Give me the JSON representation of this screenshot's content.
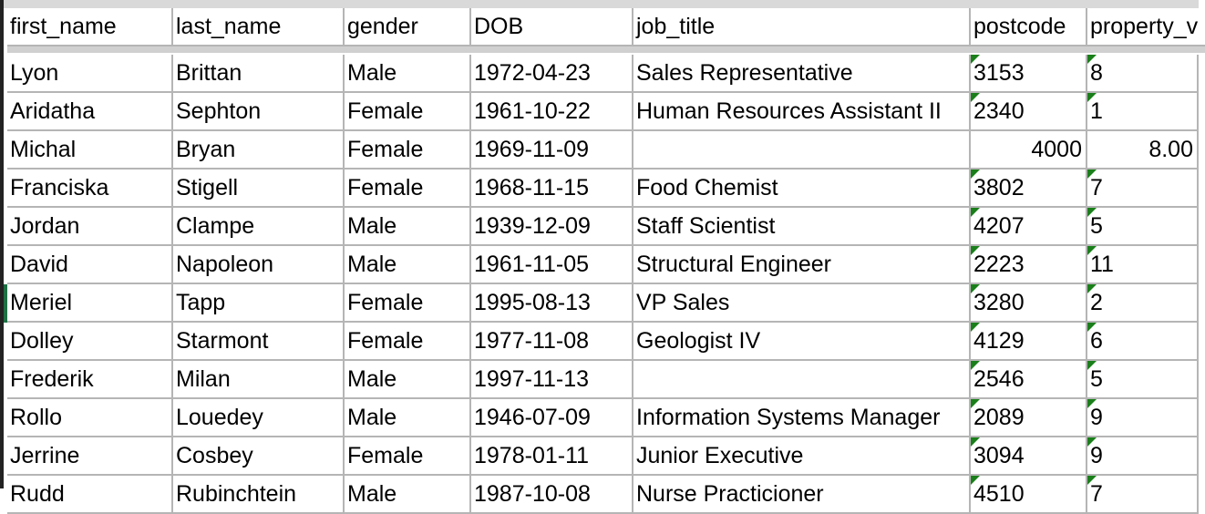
{
  "columns": [
    "first_name",
    "last_name",
    "gender",
    "DOB",
    "job_title",
    "postcode",
    "property_v"
  ],
  "rows": [
    {
      "first_name": "Lyon",
      "last_name": "Brittan",
      "gender": "Male",
      "DOB": "1972-04-23",
      "job_title": "Sales Representative",
      "postcode": "3153",
      "property_valuation": "8",
      "as_text": true
    },
    {
      "first_name": "Aridatha",
      "last_name": "Sephton",
      "gender": "Female",
      "DOB": "1961-10-22",
      "job_title": "Human Resources Assistant II",
      "postcode": "2340",
      "property_valuation": "1",
      "as_text": true
    },
    {
      "first_name": "Michal",
      "last_name": "Bryan",
      "gender": "Female",
      "DOB": "1969-11-09",
      "job_title": "",
      "postcode": "4000",
      "property_valuation": "8.00",
      "as_text": false
    },
    {
      "first_name": "Franciska",
      "last_name": "Stigell",
      "gender": "Female",
      "DOB": "1968-11-15",
      "job_title": "Food Chemist",
      "postcode": "3802",
      "property_valuation": "7",
      "as_text": true
    },
    {
      "first_name": "Jordan",
      "last_name": "Clampe",
      "gender": "Male",
      "DOB": "1939-12-09",
      "job_title": "Staff Scientist",
      "postcode": "4207",
      "property_valuation": "5",
      "as_text": true
    },
    {
      "first_name": "David",
      "last_name": "Napoleon",
      "gender": "Male",
      "DOB": "1961-11-05",
      "job_title": "Structural Engineer",
      "postcode": "2223",
      "property_valuation": "11",
      "as_text": true
    },
    {
      "first_name": "Meriel",
      "last_name": "Tapp",
      "gender": "Female",
      "DOB": "1995-08-13",
      "job_title": "VP Sales",
      "postcode": "3280",
      "property_valuation": "2",
      "as_text": true
    },
    {
      "first_name": "Dolley",
      "last_name": "Starmont",
      "gender": "Female",
      "DOB": "1977-11-08",
      "job_title": "Geologist IV",
      "postcode": "4129",
      "property_valuation": "6",
      "as_text": true
    },
    {
      "first_name": "Frederik",
      "last_name": "Milan",
      "gender": "Male",
      "DOB": "1997-11-13",
      "job_title": "",
      "postcode": "2546",
      "property_valuation": "5",
      "as_text": true
    },
    {
      "first_name": "Rollo",
      "last_name": "Louedey",
      "gender": "Male",
      "DOB": "1946-07-09",
      "job_title": "Information Systems Manager",
      "postcode": "2089",
      "property_valuation": "9",
      "as_text": true
    },
    {
      "first_name": "Jerrine",
      "last_name": "Cosbey",
      "gender": "Female",
      "DOB": "1978-01-11",
      "job_title": "Junior Executive",
      "postcode": "3094",
      "property_valuation": "9",
      "as_text": true
    },
    {
      "first_name": "Rudd",
      "last_name": "Rubinchtein",
      "gender": "Male",
      "DOB": "1987-10-08",
      "job_title": "Nurse Practicioner",
      "postcode": "4510",
      "property_valuation": "7",
      "as_text": true
    }
  ],
  "colors": {
    "error_triangle": "#1a7f1a",
    "gridline": "#b5b5b5",
    "header_separator": "#d0d0d0"
  }
}
